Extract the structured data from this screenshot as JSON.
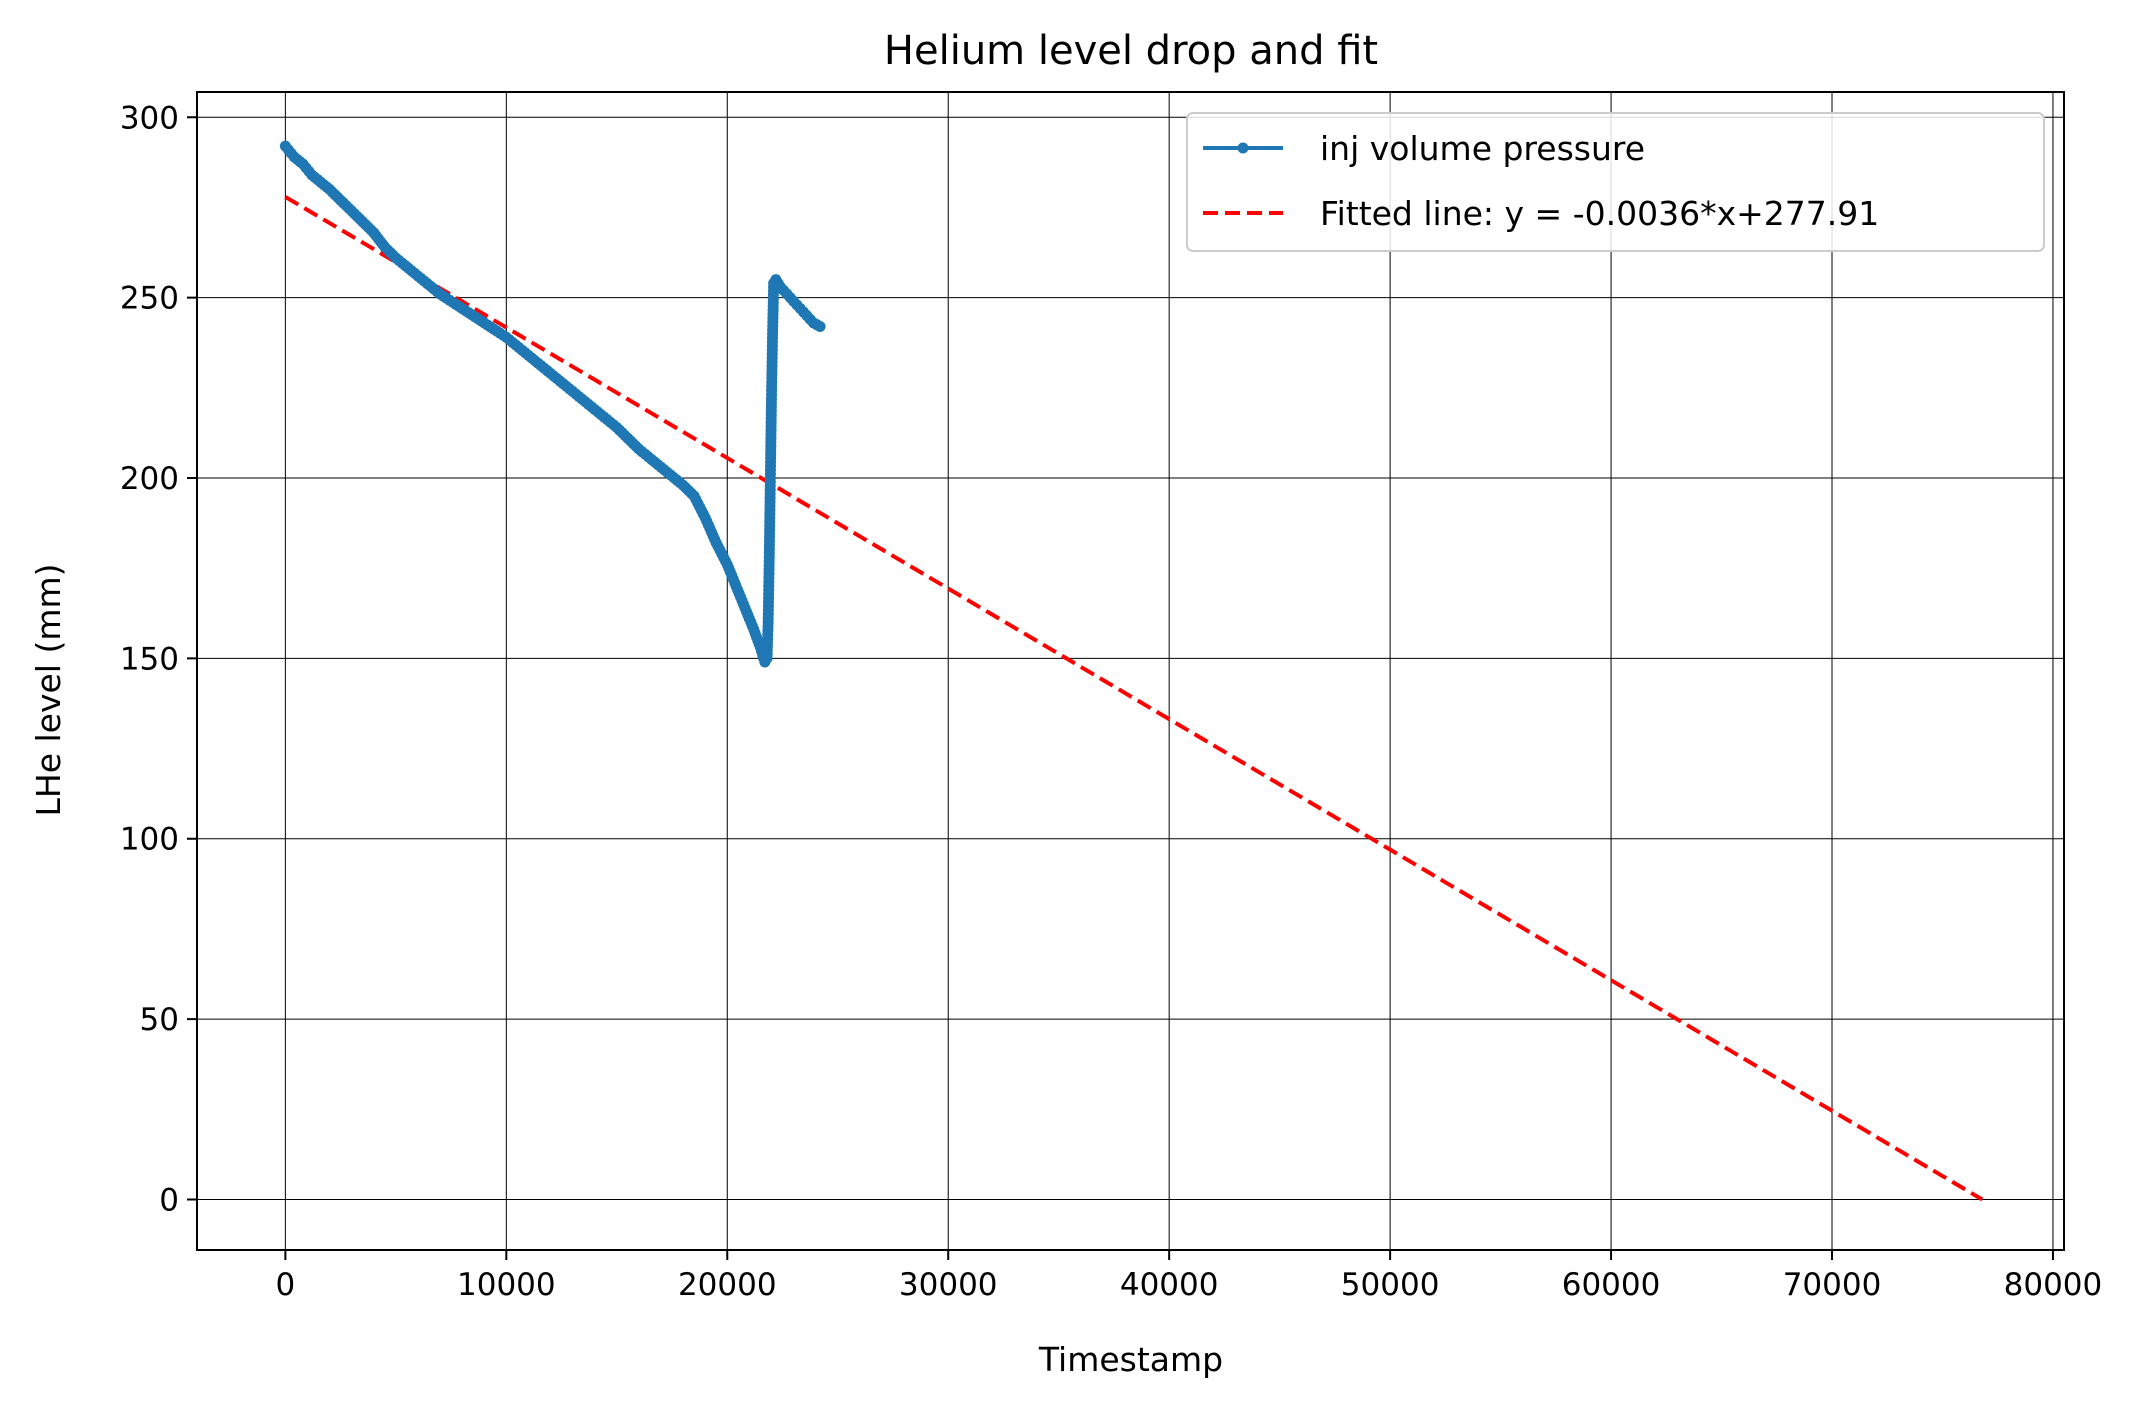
{
  "chart_data": {
    "type": "line",
    "title": "Helium level drop and fit",
    "xlabel": "Timestamp",
    "ylabel": "LHe level (mm)",
    "xlim": [
      -4000,
      80500
    ],
    "ylim": [
      -14,
      307
    ],
    "xticks": [
      0,
      10000,
      20000,
      30000,
      40000,
      50000,
      60000,
      70000,
      80000
    ],
    "yticks": [
      0,
      50,
      100,
      150,
      200,
      250,
      300
    ],
    "grid": true,
    "legend_position": "top-right",
    "series": [
      {
        "name": "inj volume pressure",
        "style": "line-with-markers",
        "color": "#1f77b4",
        "x": [
          0,
          400,
          800,
          1200,
          1600,
          2000,
          2500,
          3000,
          3500,
          4000,
          4500,
          5000,
          6000,
          7000,
          8000,
          9000,
          10000,
          11000,
          12000,
          13000,
          14000,
          15000,
          16000,
          17000,
          18000,
          18500,
          19000,
          19500,
          20000,
          20400,
          20800,
          21200,
          21500,
          21700,
          21800,
          21850,
          21900,
          21950,
          22000,
          22050,
          22100,
          22200,
          22400,
          22700,
          23000,
          23300,
          23600,
          23900,
          24200
        ],
        "y": [
          292,
          289,
          287,
          284,
          282,
          280,
          277,
          274,
          271,
          268,
          264,
          261,
          256,
          251,
          247,
          243,
          239,
          234,
          229,
          224,
          219,
          214,
          208,
          203,
          198,
          195,
          189,
          182,
          176,
          170,
          164,
          158,
          153,
          149,
          150,
          160,
          178,
          200,
          222,
          240,
          254,
          255,
          253,
          251,
          249,
          247,
          245,
          243,
          242
        ]
      },
      {
        "name": "Fitted line: y = -0.0036*x+277.91",
        "style": "dashed",
        "color": "#ff0000",
        "x": [
          0,
          76800
        ],
        "y": [
          277.91,
          0
        ]
      }
    ]
  }
}
